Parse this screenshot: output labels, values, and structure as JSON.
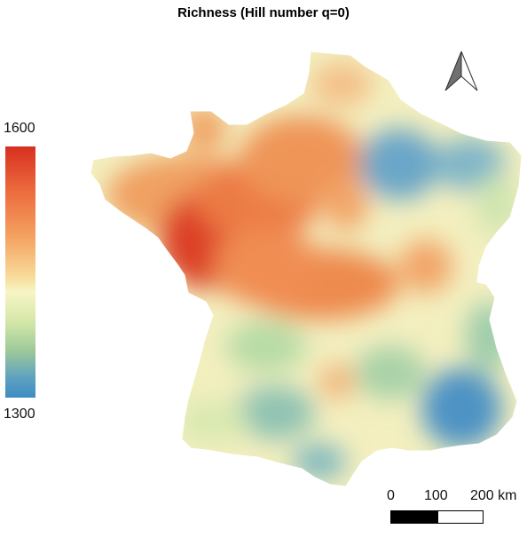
{
  "title": "Richness (Hill number q=0)",
  "legend": {
    "max_label": "1600",
    "min_label": "1300",
    "max_value": 1600,
    "min_value": 1300,
    "colors": [
      "#d7301f",
      "#f4a261",
      "#f7f5c5",
      "#99c79a",
      "#3f8cc3"
    ]
  },
  "scale_bar": {
    "tick_0": "0",
    "tick_100": "100",
    "tick_200": "200 km"
  },
  "north_arrow": {
    "icon": "north-arrow-icon"
  }
}
